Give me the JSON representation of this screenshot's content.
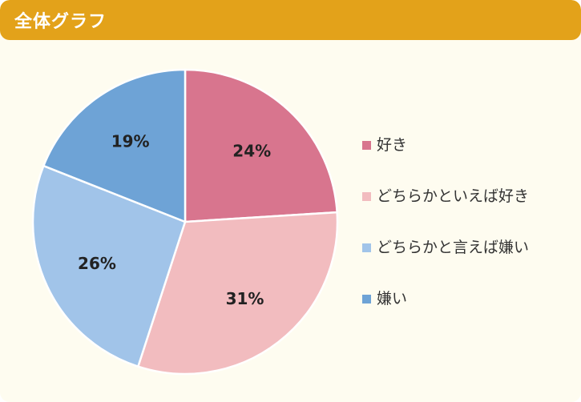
{
  "header": {
    "title": "全体グラフ"
  },
  "colors": {
    "header_bg": "#e3a21a",
    "panel_bg": "#fefcf0"
  },
  "chart_data": {
    "type": "pie",
    "title": "全体グラフ",
    "categories": [
      "好き",
      "どちらかといえば好き",
      "どちらかと言えば嫌い",
      "嫌い"
    ],
    "values": [
      24,
      31,
      26,
      19
    ],
    "labels": [
      "24%",
      "31%",
      "26%",
      "19%"
    ],
    "colors": [
      "#d8758e",
      "#f2bcbf",
      "#a1c4e9",
      "#6ea3d6"
    ],
    "start": "12 o'clock, clockwise",
    "legend": "right"
  }
}
